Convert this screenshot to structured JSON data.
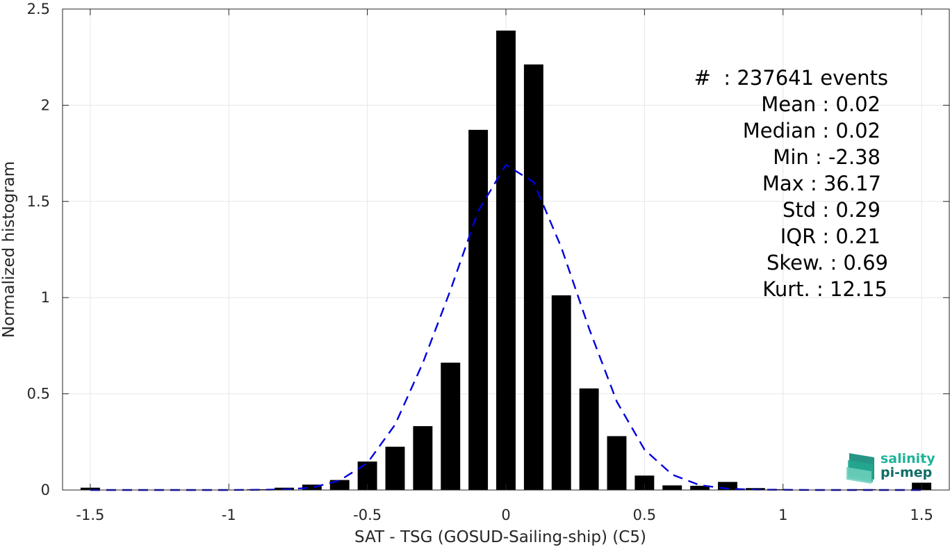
{
  "chart_data": {
    "type": "bar",
    "title": "",
    "xlabel": "SAT - TSG (GOSUD-Sailing-ship) (C5)",
    "ylabel": "Normalized histogram",
    "xlim": [
      -1.6,
      1.6
    ],
    "ylim": [
      0,
      2.5
    ],
    "grid": true,
    "bar_width": 0.07,
    "xticks": [
      -1.5,
      -1,
      -0.5,
      0,
      0.5,
      1,
      1.5
    ],
    "xtick_labels": [
      "-1.5",
      "-1",
      "-0.5",
      "0",
      "0.5",
      "1",
      "1.5"
    ],
    "yticks": [
      0,
      0.5,
      1,
      1.5,
      2,
      2.5
    ],
    "ytick_labels": [
      "0",
      "0.5",
      "1",
      "1.5",
      "2",
      "2.5"
    ],
    "bars": {
      "x": [
        -1.5,
        -1.4,
        -1.3,
        -1.2,
        -1.1,
        -1.0,
        -0.9,
        -0.8,
        -0.7,
        -0.6,
        -0.5,
        -0.4,
        -0.3,
        -0.2,
        -0.1,
        0.0,
        0.1,
        0.2,
        0.3,
        0.4,
        0.5,
        0.6,
        0.7,
        0.8,
        0.9,
        1.0,
        1.1,
        1.2,
        1.3,
        1.4,
        1.5
      ],
      "values": [
        0.012,
        0.001,
        0.001,
        0.001,
        0.002,
        0.002,
        0.004,
        0.012,
        0.028,
        0.052,
        0.148,
        0.225,
        0.332,
        0.662,
        1.872,
        2.388,
        2.212,
        1.012,
        0.528,
        0.28,
        0.075,
        0.024,
        0.022,
        0.042,
        0.01,
        0.004,
        0.002,
        0.002,
        0.004,
        0.002,
        0.038
      ],
      "color": "#000000"
    },
    "fit_curve": {
      "style": "dashed",
      "color": "#0000dd",
      "x": [
        -1.5,
        -1.4,
        -1.3,
        -1.2,
        -1.1,
        -1.0,
        -0.9,
        -0.8,
        -0.7,
        -0.6,
        -0.5,
        -0.4,
        -0.3,
        -0.2,
        -0.1,
        0.0,
        0.1,
        0.2,
        0.3,
        0.4,
        0.5,
        0.6,
        0.7,
        0.8,
        0.9,
        1.0,
        1.1,
        1.2,
        1.3,
        1.4,
        1.5
      ],
      "values": [
        0,
        0,
        0,
        0,
        0,
        0,
        0.001,
        0.003,
        0.012,
        0.05,
        0.14,
        0.34,
        0.66,
        1.04,
        1.45,
        1.69,
        1.6,
        1.26,
        0.84,
        0.46,
        0.21,
        0.08,
        0.025,
        0.007,
        0.002,
        0.001,
        0,
        0,
        0,
        0,
        0
      ]
    },
    "annotations": {
      "events": "#  : 237641 events",
      "mean": "Mean : 0.02",
      "median": "Median : 0.02",
      "min": "Min : -2.38",
      "max": "Max : 36.17",
      "std": "Std : 0.29",
      "iqr": "IQR : 0.21",
      "skew": "Skew. : 0.69",
      "kurt": "Kurt. : 12.15"
    }
  },
  "logo": {
    "line1": "salinity",
    "line2": "pi-mep",
    "color1": "#1fb39a",
    "color2": "#0f6e66"
  }
}
